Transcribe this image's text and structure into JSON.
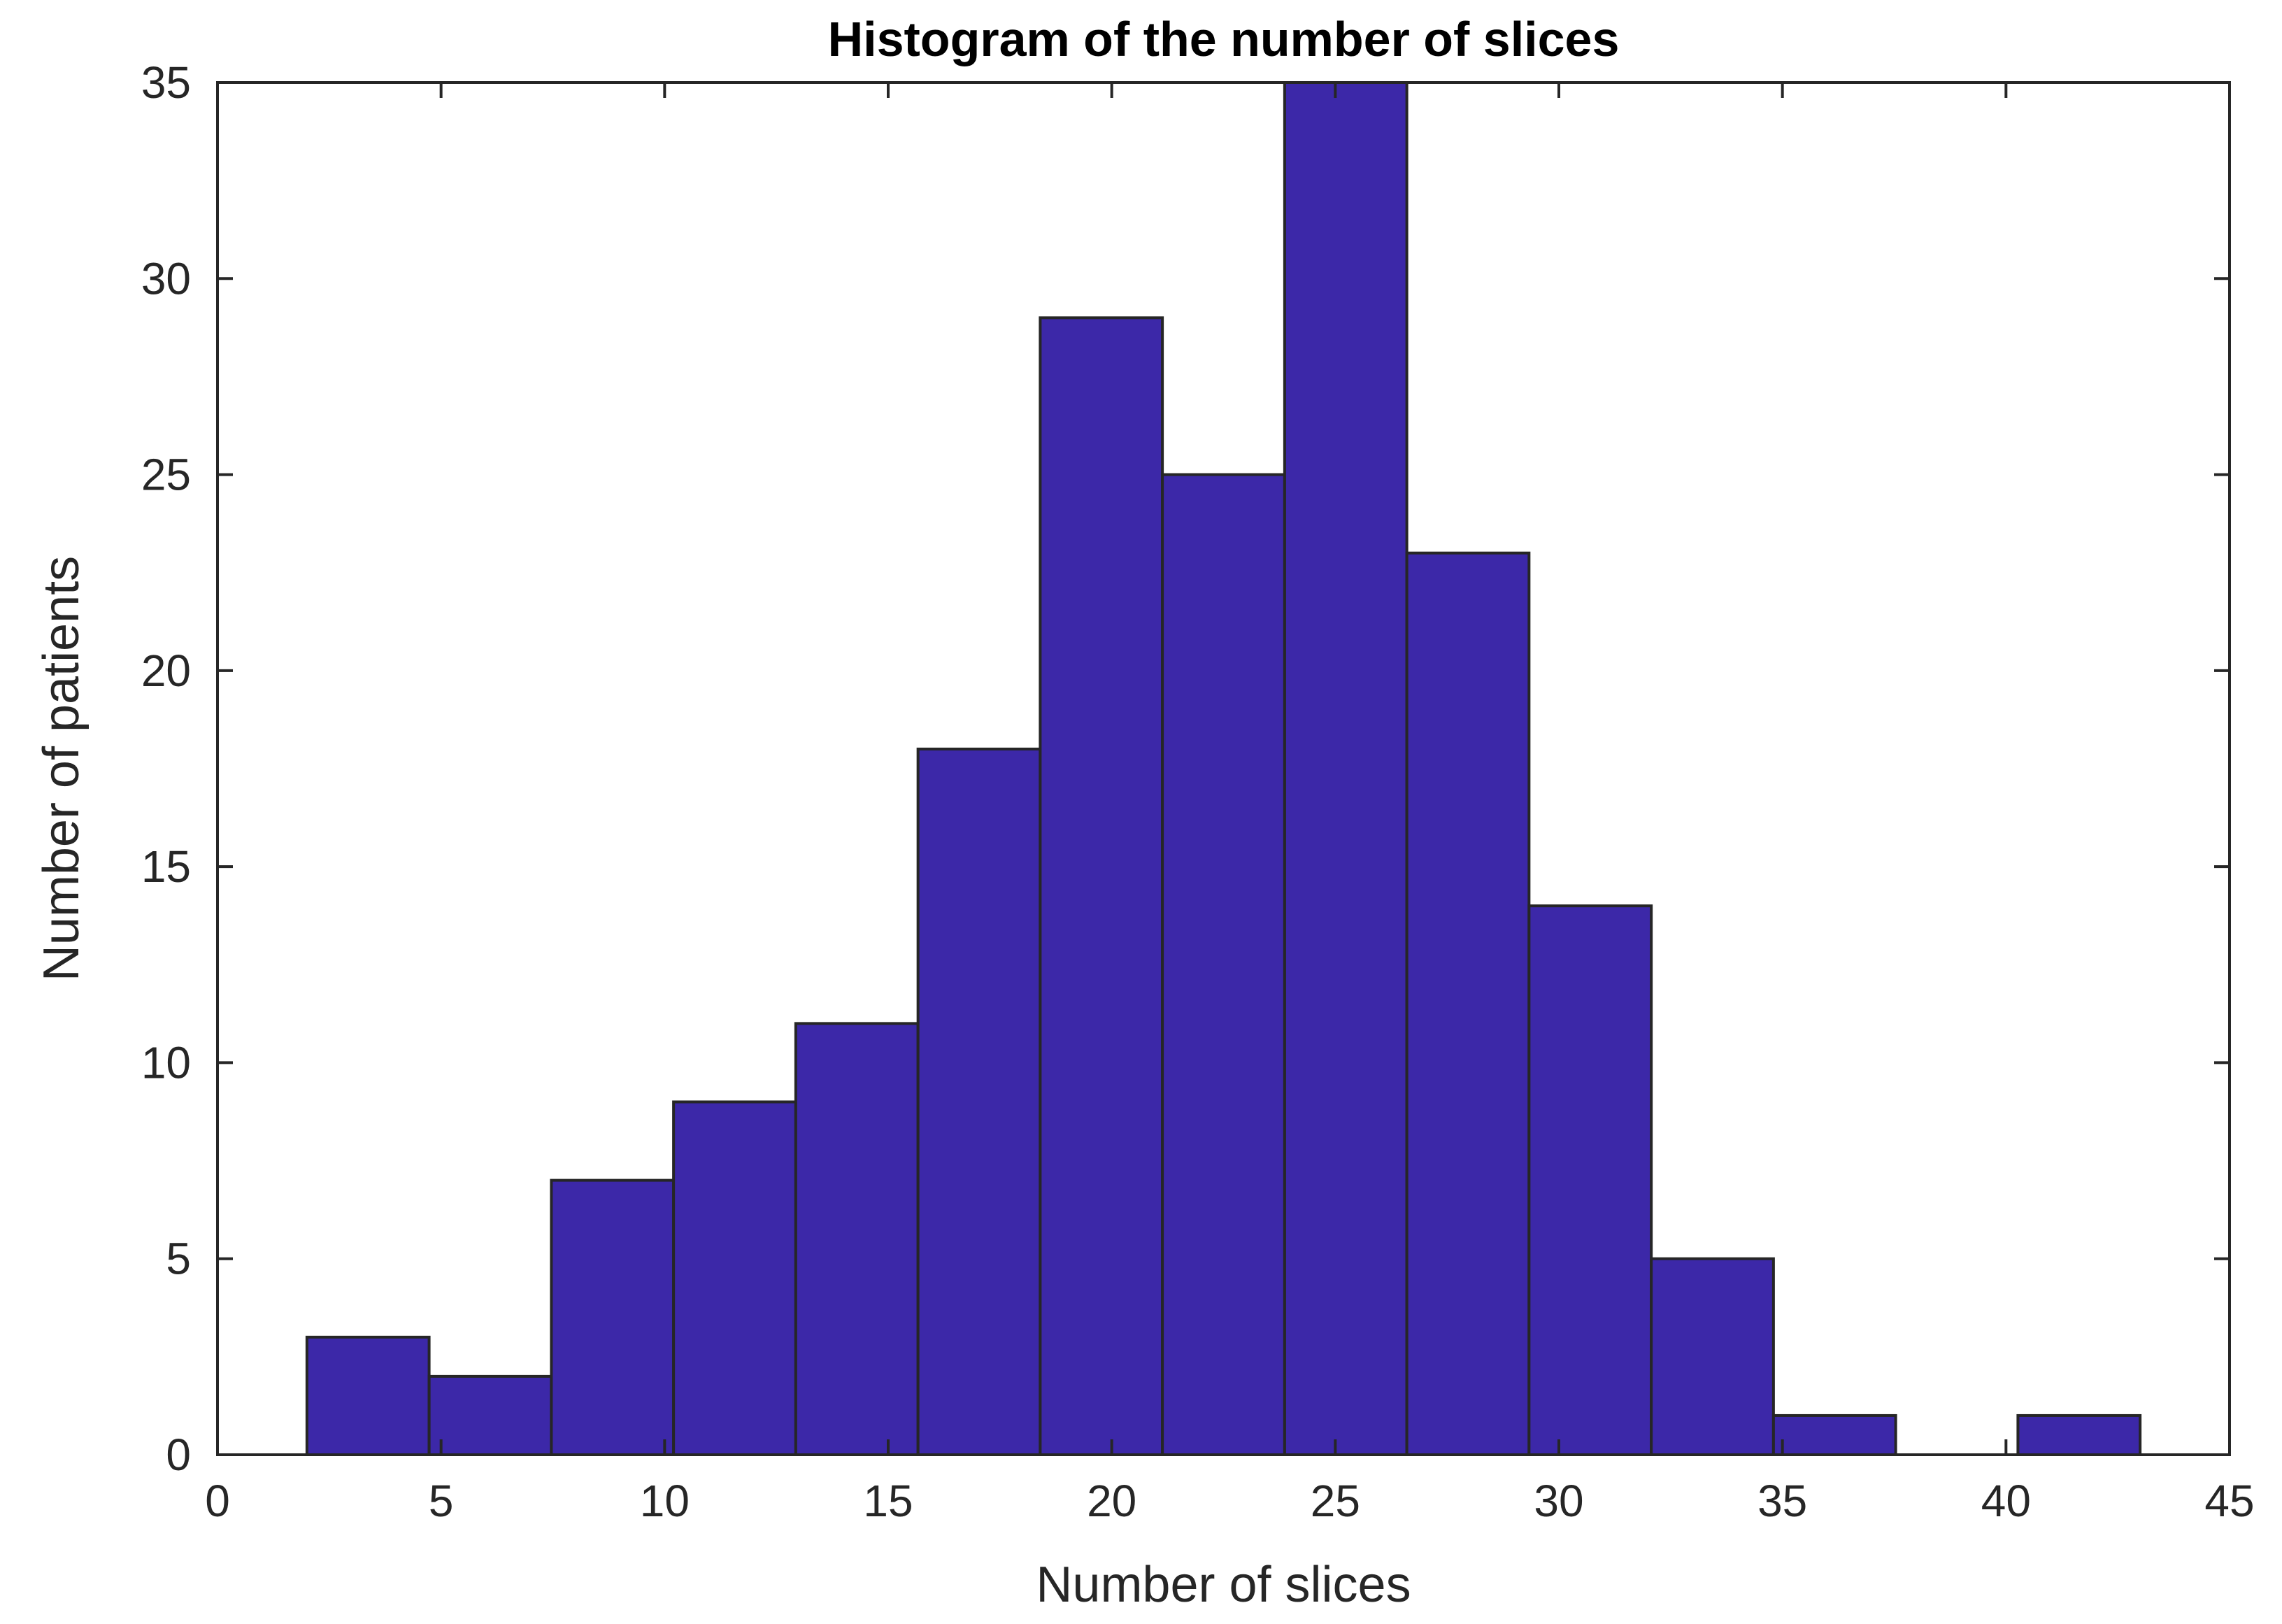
{
  "chart_data": {
    "type": "bar",
    "subtype": "histogram",
    "title": "Histogram of the number of slices",
    "xlabel": "Number of slices",
    "ylabel": "Number of patients",
    "xlim": [
      0,
      45
    ],
    "ylim": [
      0,
      35
    ],
    "xticks": [
      0,
      5,
      10,
      15,
      20,
      25,
      30,
      35,
      40,
      45
    ],
    "yticks": [
      0,
      5,
      10,
      15,
      20,
      25,
      30,
      35
    ],
    "bin_edges": [
      2,
      4.733,
      7.467,
      10.2,
      12.933,
      15.667,
      18.4,
      21.133,
      23.867,
      26.6,
      29.333,
      32.067,
      34.8,
      37.533,
      40.267,
      43
    ],
    "counts": [
      3,
      2,
      7,
      9,
      11,
      18,
      29,
      25,
      35,
      23,
      14,
      5,
      1,
      0,
      1
    ],
    "grid": false,
    "bar_color": "#3C28A8",
    "edge_color": "#262626"
  }
}
